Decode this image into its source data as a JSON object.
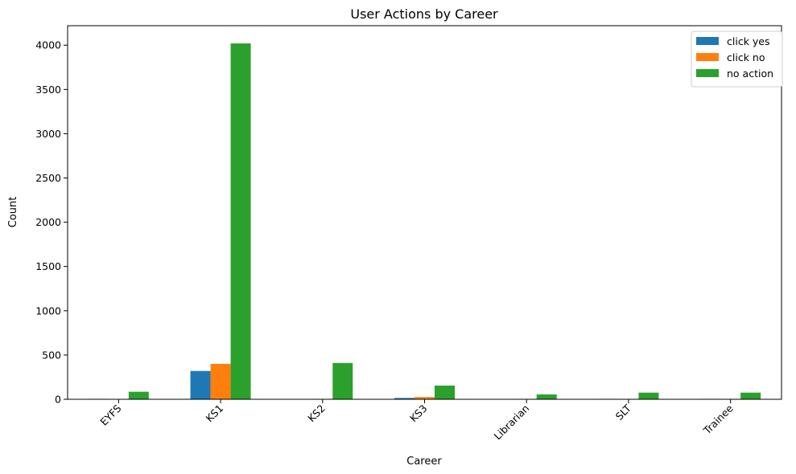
{
  "chart_data": {
    "type": "bar",
    "title": "User Actions by Career",
    "xlabel": "Career",
    "ylabel": "Count",
    "categories": [
      "EYFS",
      "KS1",
      "KS2",
      "KS3",
      "Librarian",
      "SLT",
      "Trainee"
    ],
    "series": [
      {
        "name": "click yes",
        "color": "#1f77b4",
        "values": [
          5,
          320,
          0,
          15,
          0,
          5,
          5
        ]
      },
      {
        "name": "click no",
        "color": "#ff7f0e",
        "values": [
          0,
          400,
          5,
          25,
          5,
          5,
          5
        ]
      },
      {
        "name": "no action",
        "color": "#2ca02c",
        "values": [
          85,
          4020,
          410,
          155,
          55,
          75,
          75
        ]
      }
    ],
    "ylim": [
      0,
      4220
    ],
    "yticks": [
      0,
      500,
      1000,
      1500,
      2000,
      2500,
      3000,
      3500,
      4000
    ],
    "legend_position": "top-right",
    "grid": false
  }
}
